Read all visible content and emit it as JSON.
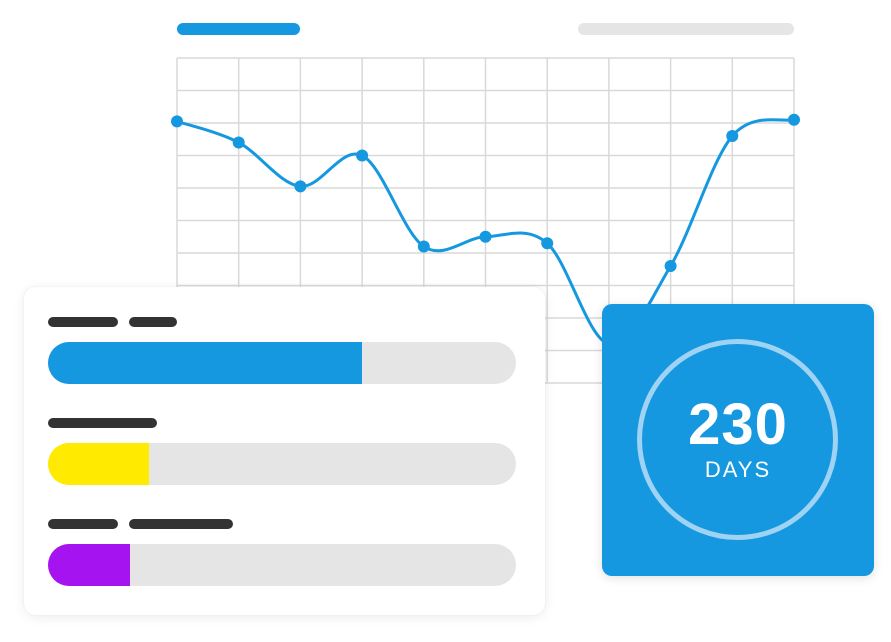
{
  "colors": {
    "accent_blue": "#1598e0",
    "ring": "#9fd3f3",
    "track": "#e5e5e5",
    "grid": "#d9d9d9",
    "placeholder_dark": "#333333",
    "placeholder_light": "#e5e5e5",
    "yellow": "#ffea00",
    "purple": "#a514f0",
    "white": "#ffffff"
  },
  "chart_data": {
    "type": "line",
    "x": [
      0,
      1,
      2,
      3,
      4,
      5,
      6,
      7,
      8,
      9,
      10
    ],
    "series": [
      {
        "values": [
          8.05,
          7.4,
          6.05,
          7.0,
          4.2,
          4.5,
          4.3,
          1.2,
          3.6,
          7.6,
          8.1
        ]
      }
    ],
    "xlim": [
      0,
      10
    ],
    "ylim": [
      0,
      10
    ],
    "grid": true,
    "title": "",
    "xlabel": "",
    "ylabel": ""
  },
  "progress_bars": [
    {
      "fill": 0.67,
      "color": "#1598e0"
    },
    {
      "fill": 0.215,
      "color": "#ffea00"
    },
    {
      "fill": 0.175,
      "color": "#a514f0"
    }
  ],
  "counter": {
    "value": "230",
    "unit": "DAYS"
  }
}
